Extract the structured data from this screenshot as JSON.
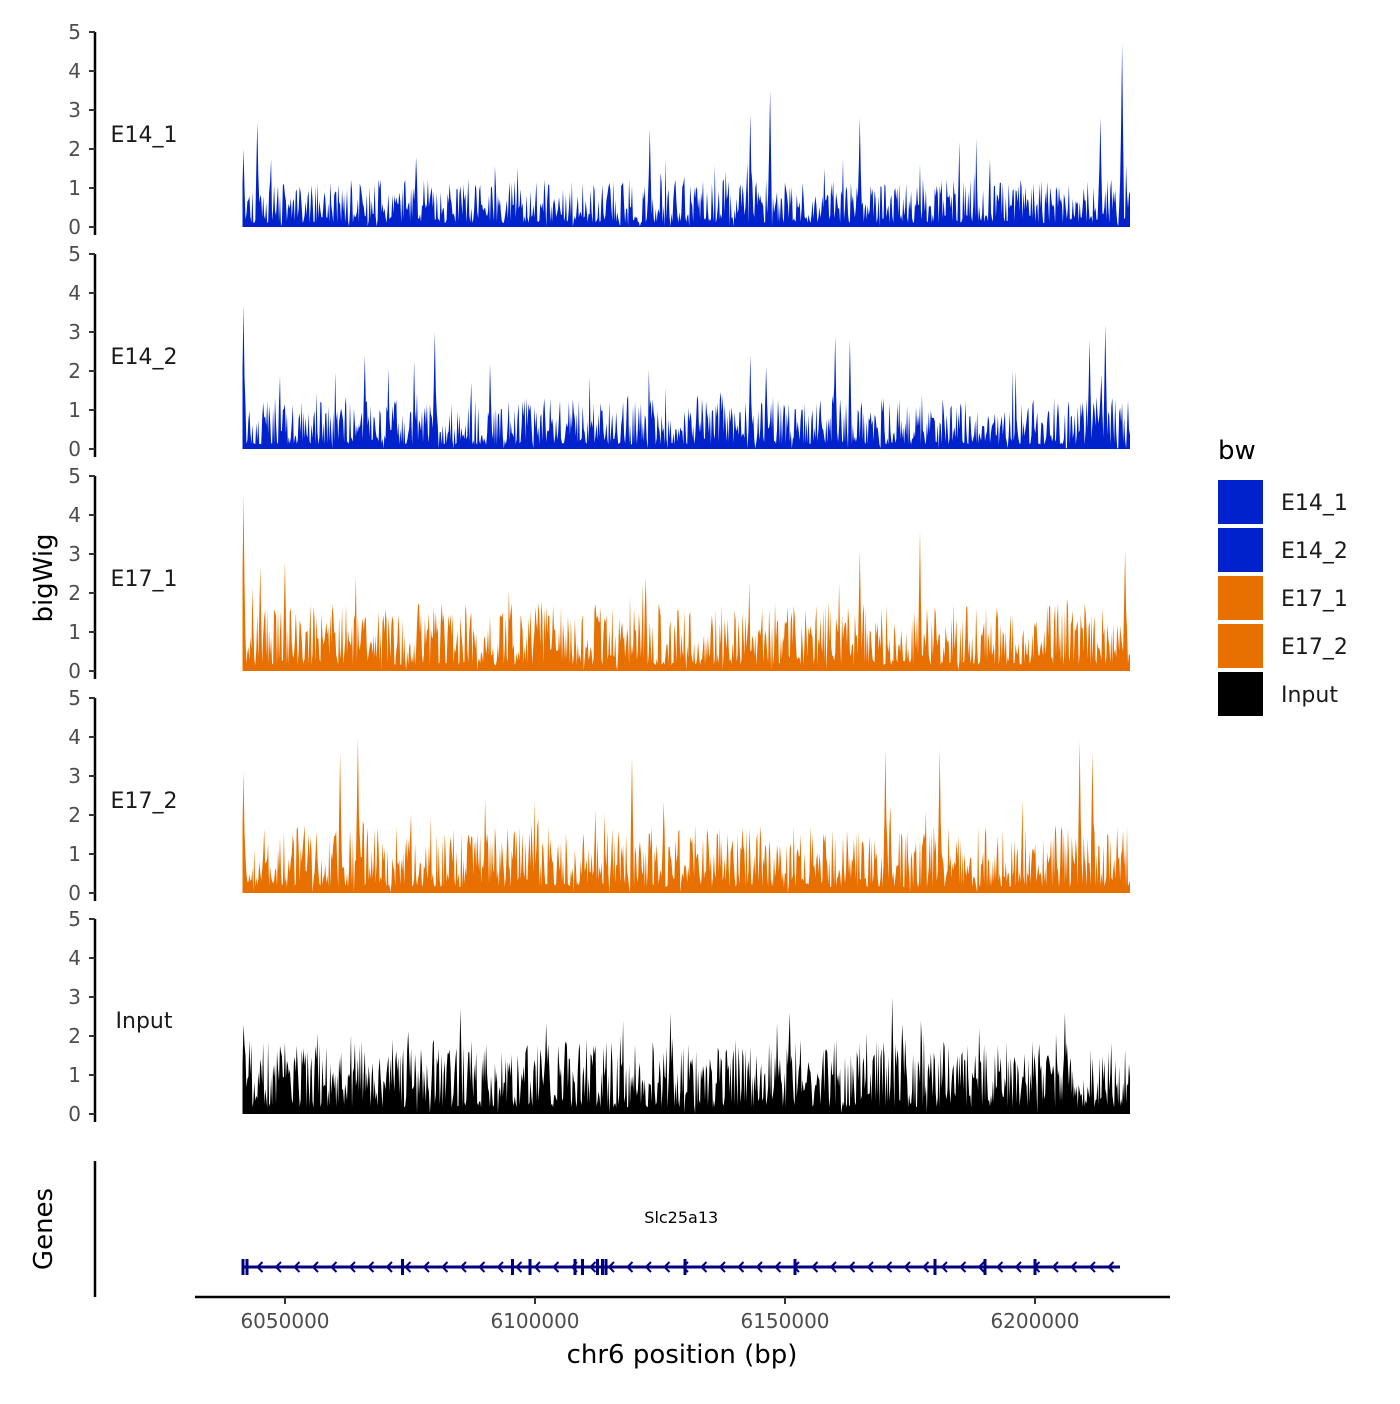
{
  "chart_data": {
    "type": "area",
    "y_axis_title": "bigWig",
    "x_axis_title": "chr6 position (bp)",
    "genes_axis_title": "Genes",
    "xlim": [
      6032000,
      6227000
    ],
    "data_range": [
      6041500,
      6219000
    ],
    "x_ticks": [
      6050000,
      6100000,
      6150000,
      6200000
    ],
    "x_tick_labels": [
      "6050000",
      "6100000",
      "6150000",
      "6200000"
    ],
    "ylim": [
      0,
      5
    ],
    "y_ticks": [
      0,
      1,
      2,
      3,
      4,
      5
    ],
    "y_tick_labels": [
      "0",
      "1",
      "2",
      "3",
      "4",
      "5"
    ],
    "tracks": [
      {
        "name": "E14_1",
        "color": "#0022cc",
        "peaks": [
          {
            "x": 6041700,
            "y": 2.0
          },
          {
            "x": 6044500,
            "y": 2.7
          },
          {
            "x": 6143000,
            "y": 2.9
          },
          {
            "x": 6147000,
            "y": 3.5
          },
          {
            "x": 6165000,
            "y": 2.8
          },
          {
            "x": 6217500,
            "y": 4.7
          },
          {
            "x": 6213000,
            "y": 2.8
          },
          {
            "x": 6123000,
            "y": 2.5
          }
        ],
        "base_mean": 0.7,
        "seed": 11
      },
      {
        "name": "E14_2",
        "color": "#0022cc",
        "peaks": [
          {
            "x": 6041600,
            "y": 3.7
          },
          {
            "x": 6080000,
            "y": 3.0
          },
          {
            "x": 6066000,
            "y": 2.4
          },
          {
            "x": 6214000,
            "y": 3.2
          },
          {
            "x": 6211000,
            "y": 2.8
          },
          {
            "x": 6160000,
            "y": 2.9
          },
          {
            "x": 6143000,
            "y": 2.4
          },
          {
            "x": 6163000,
            "y": 2.8
          }
        ],
        "base_mean": 0.75,
        "seed": 23
      },
      {
        "name": "E17_1",
        "color": "#e87000",
        "peaks": [
          {
            "x": 6041600,
            "y": 4.5
          },
          {
            "x": 6177000,
            "y": 3.6
          },
          {
            "x": 6165000,
            "y": 3.1
          },
          {
            "x": 6218000,
            "y": 3.1
          },
          {
            "x": 6045000,
            "y": 2.7
          },
          {
            "x": 6050000,
            "y": 2.8
          }
        ],
        "base_mean": 1.0,
        "seed": 37
      },
      {
        "name": "E17_2",
        "color": "#e87000",
        "peaks": [
          {
            "x": 6064500,
            "y": 4.0
          },
          {
            "x": 6061000,
            "y": 3.6
          },
          {
            "x": 6170000,
            "y": 3.7
          },
          {
            "x": 6209000,
            "y": 3.9
          },
          {
            "x": 6211500,
            "y": 3.6
          },
          {
            "x": 6041600,
            "y": 3.1
          },
          {
            "x": 6119500,
            "y": 3.5
          },
          {
            "x": 6181000,
            "y": 3.7
          }
        ],
        "base_mean": 1.0,
        "seed": 53
      },
      {
        "name": "Input",
        "color": "#000000",
        "peaks": [
          {
            "x": 6171500,
            "y": 3.0
          },
          {
            "x": 6085000,
            "y": 2.7
          },
          {
            "x": 6127000,
            "y": 2.6
          },
          {
            "x": 6151000,
            "y": 2.6
          },
          {
            "x": 6206000,
            "y": 2.6
          },
          {
            "x": 6041600,
            "y": 2.3
          }
        ],
        "base_mean": 1.1,
        "seed": 71
      }
    ],
    "legend": {
      "title": "bw",
      "position": "right",
      "entries": [
        {
          "label": "E14_1",
          "color": "#0022cc"
        },
        {
          "label": "E14_2",
          "color": "#0022cc"
        },
        {
          "label": "E17_1",
          "color": "#e87000"
        },
        {
          "label": "E17_2",
          "color": "#e87000"
        },
        {
          "label": "Input",
          "color": "#000000"
        }
      ]
    },
    "gene": {
      "name": "Slc25a13",
      "strand": "-",
      "start": 6041500,
      "end": 6217000,
      "color": "#000080",
      "exons": [
        6041600,
        6042400,
        6073500,
        6095500,
        6099000,
        6108000,
        6109500,
        6112500,
        6113500,
        6114200,
        6130000,
        6152000,
        6180000,
        6190000,
        6200000
      ]
    }
  }
}
